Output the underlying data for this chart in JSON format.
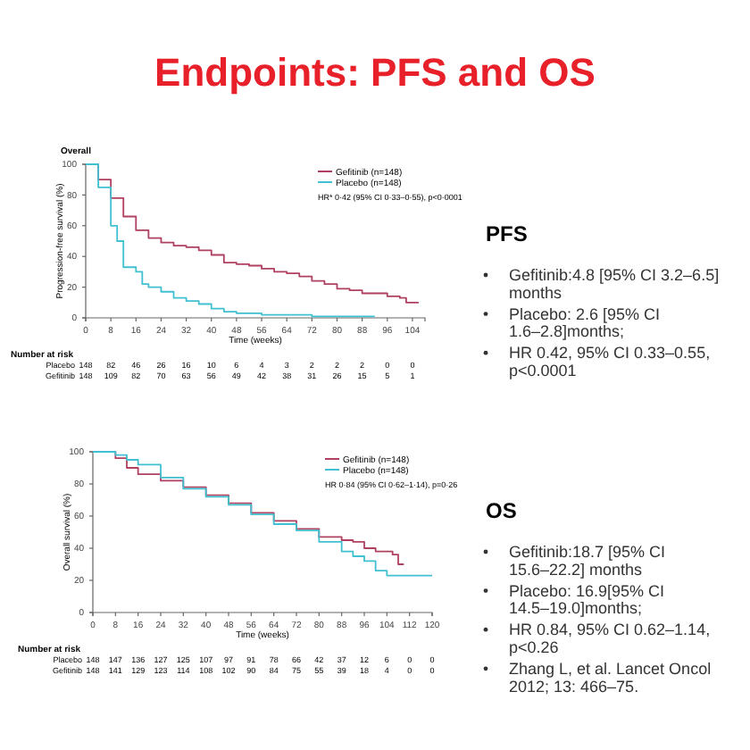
{
  "chart_data": [
    {
      "type": "step",
      "title": "Endpoints: PFS  and OS",
      "subtitle": "Overall",
      "xlabel": "Time (weeks)",
      "ylabel": "Progression-free survival (%)",
      "xlim": [
        0,
        108
      ],
      "xticks": [
        0,
        8,
        16,
        24,
        32,
        40,
        48,
        56,
        64,
        72,
        80,
        88,
        96,
        104
      ],
      "ylim": [
        0,
        100
      ],
      "yticks": [
        0,
        20,
        40,
        60,
        80,
        100
      ],
      "grid": false,
      "legend": "top right",
      "marker": "none",
      "line_style": "solid",
      "series": [
        {
          "name": "Gefitinib (n=148)",
          "color": "#b04060",
          "x": [
            0,
            4,
            8,
            12,
            16,
            20,
            24,
            28,
            32,
            36,
            40,
            44,
            48,
            52,
            56,
            60,
            64,
            68,
            72,
            76,
            80,
            84,
            88,
            92,
            96,
            100,
            102,
            106
          ],
          "values": [
            100,
            90,
            78,
            66,
            57,
            52,
            49,
            47,
            46,
            44,
            41,
            36,
            35,
            34,
            32,
            30,
            29,
            27,
            24,
            22,
            19,
            18,
            16,
            16,
            14,
            13,
            10,
            10
          ]
        },
        {
          "name": "Placebo (n=148)",
          "color": "#40c0d0",
          "x": [
            0,
            4,
            8,
            10,
            12,
            16,
            18,
            20,
            24,
            28,
            32,
            36,
            40,
            44,
            48,
            56,
            64,
            72,
            80,
            92
          ],
          "values": [
            100,
            85,
            60,
            50,
            33,
            30,
            22,
            20,
            17,
            13,
            11,
            9,
            6,
            4,
            3,
            2,
            2,
            1,
            1,
            1
          ]
        }
      ],
      "annotations": [
        "HR* 0·42 (95% CI 0·33–0·55), p<0·0001",
        "Number at risk",
        "Placebo 148 82 46 26 16 10 6 4 3 2 2 2 0 0",
        "Gefitinib 148 109 82 70 63 56 49 42 38 31 26 15 5 1",
        "PFS",
        "Gefitinib:4.8 [95% CI 3.2–6.5] months",
        "Placebo: 2.6 [95% CI 1.6–2.8]months;",
        "HR 0.42, 95% CI 0.33–0.55, p<0.0001"
      ]
    },
    {
      "type": "step",
      "xlabel": "Time (weeks)",
      "ylabel": "Overall survival (%)",
      "xlim": [
        0,
        120
      ],
      "xticks": [
        0,
        8,
        16,
        24,
        32,
        40,
        48,
        56,
        64,
        72,
        80,
        88,
        96,
        104,
        112,
        120
      ],
      "ylim": [
        0,
        100
      ],
      "yticks": [
        0,
        20,
        40,
        60,
        80,
        100
      ],
      "grid": false,
      "legend": "top right",
      "marker": "none",
      "line_style": "solid",
      "series": [
        {
          "name": "Gefitinib (n=148)",
          "color": "#b04060",
          "x": [
            0,
            8,
            12,
            16,
            24,
            32,
            40,
            48,
            56,
            64,
            72,
            80,
            88,
            92,
            96,
            100,
            104,
            106,
            108,
            110
          ],
          "values": [
            100,
            96,
            90,
            86,
            82,
            78,
            73,
            68,
            62,
            57,
            52,
            47,
            45,
            44,
            40,
            38,
            38,
            36,
            30,
            30
          ]
        },
        {
          "name": "Placebo (n=148)",
          "color": "#40c0d0",
          "x": [
            0,
            8,
            12,
            16,
            24,
            32,
            40,
            48,
            56,
            64,
            72,
            80,
            88,
            92,
            96,
            100,
            104,
            108,
            112,
            116,
            120
          ],
          "values": [
            100,
            98,
            95,
            92,
            84,
            77,
            72,
            67,
            61,
            55,
            51,
            44,
            38,
            35,
            32,
            26,
            23,
            23,
            23,
            23,
            23
          ]
        }
      ],
      "annotations": [
        "HR 0·84 (95% CI 0·62–1·14), p=0·26",
        "Number at risk",
        "Placebo 148 147 136 127 125 107 97 91 78 66 42 37 12 6 0 0",
        "Gefitinib 148 141 129 123 114 108 102 90 84 75 55 39 18 4 0 0",
        "OS",
        "Gefitinib:18.7 [95% CI 15.6–22.2] months",
        "Placebo: 16.9[95% CI 14.5–19.0]months;",
        "HR 0.84, 95% CI 0.62–1.14, p<0.26",
        "Zhang L, et al. Lancet Oncol 2012; 13: 466–75."
      ]
    }
  ]
}
